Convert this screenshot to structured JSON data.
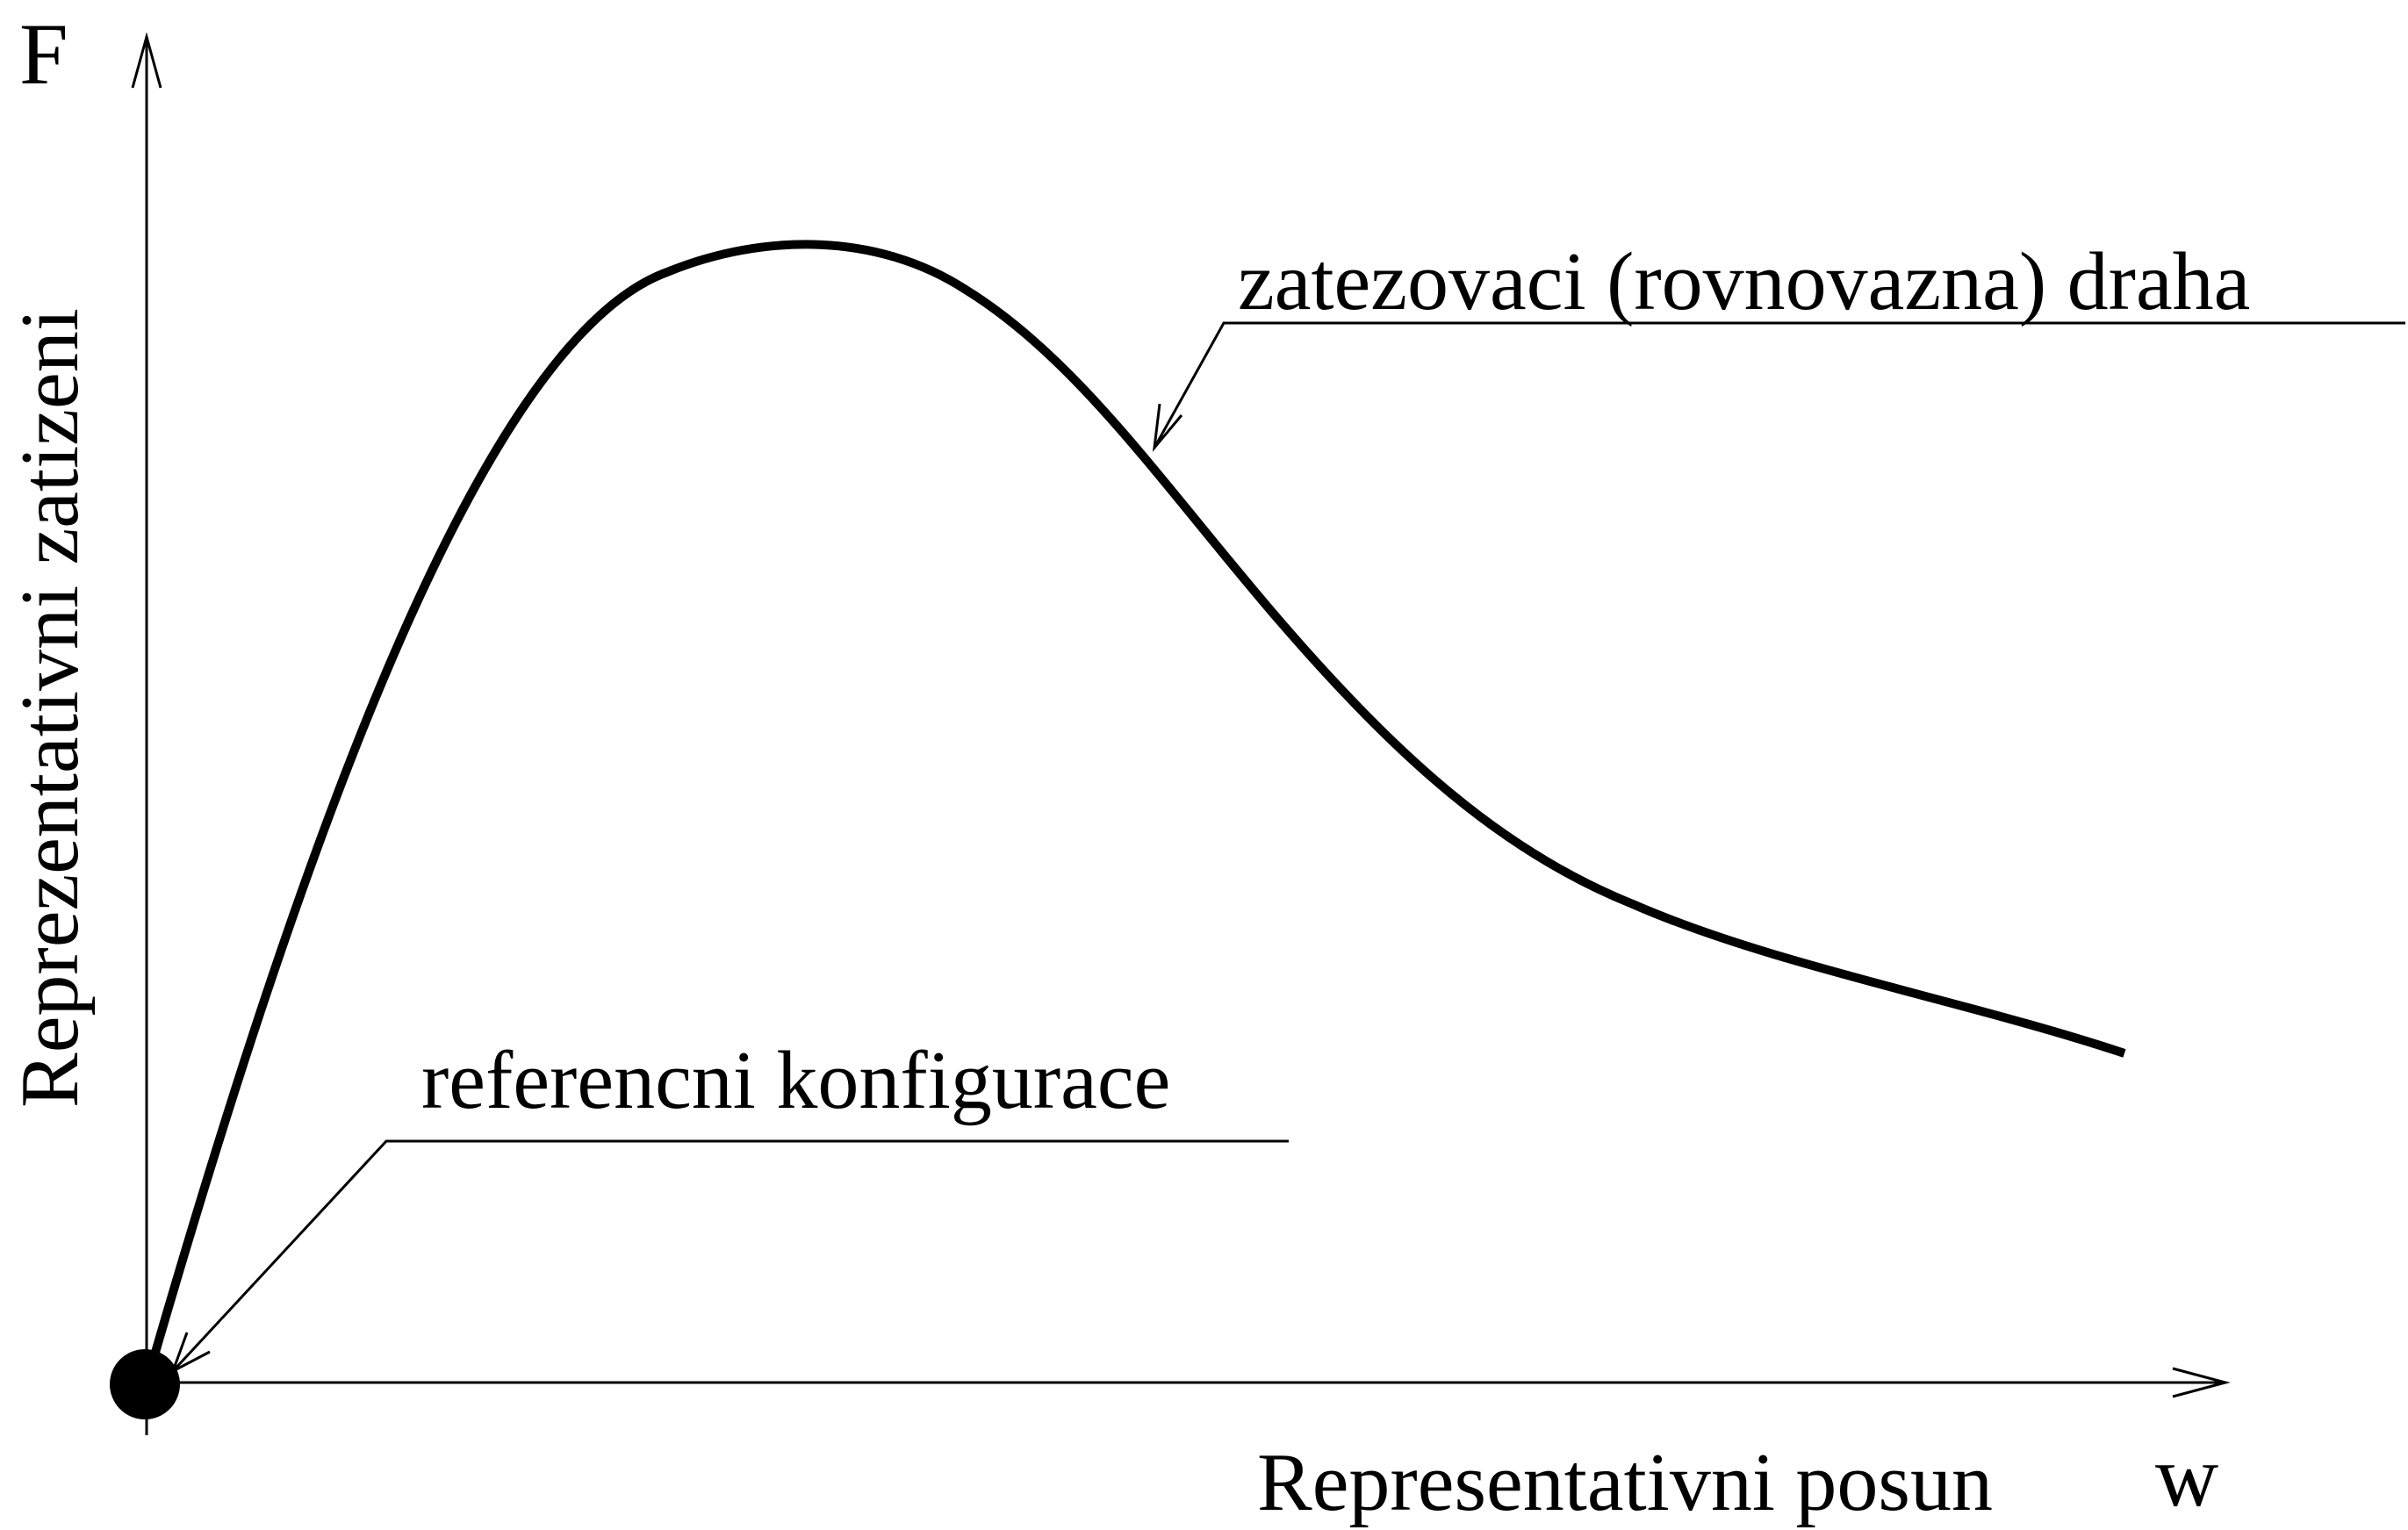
{
  "diagram": {
    "y_axis_symbol": "F",
    "x_axis_symbol": "w",
    "y_axis_label": "Reprezentativni zatizeni",
    "x_axis_label": "Representativni posun",
    "curve_label": "zatezovaci (rovnovazna) draha",
    "reference_label": "referencni konfigurace",
    "colors": {
      "ink": "#000000",
      "background": "#ffffff"
    }
  }
}
